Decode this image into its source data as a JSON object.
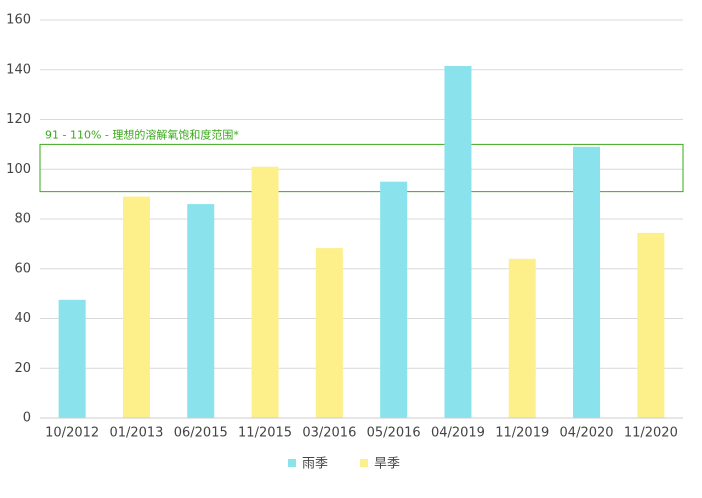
{
  "chart_data": {
    "type": "bar",
    "categories": [
      "10/2012",
      "01/2013",
      "06/2015",
      "11/2015",
      "03/2016",
      "05/2016",
      "04/2019",
      "11/2019",
      "04/2020",
      "11/2020"
    ],
    "series": [
      {
        "name": "雨季",
        "color": "#8ae2ec",
        "values": [
          47.5,
          null,
          86,
          null,
          null,
          95,
          141.5,
          null,
          109,
          null
        ]
      },
      {
        "name": "旱季",
        "color": "#fdef8a",
        "values": [
          null,
          89,
          null,
          101,
          68.3,
          null,
          null,
          64,
          null,
          74.4
        ]
      }
    ],
    "ylim": [
      0,
      160
    ],
    "yticks": [
      0,
      20,
      40,
      60,
      80,
      100,
      120,
      140,
      160
    ],
    "grid": true,
    "band": {
      "range": [
        91,
        110
      ],
      "label": "91 - 110% - 理想的溶解氧饱和度范围*",
      "color": "#3aa81a"
    },
    "legend": "bottom"
  }
}
